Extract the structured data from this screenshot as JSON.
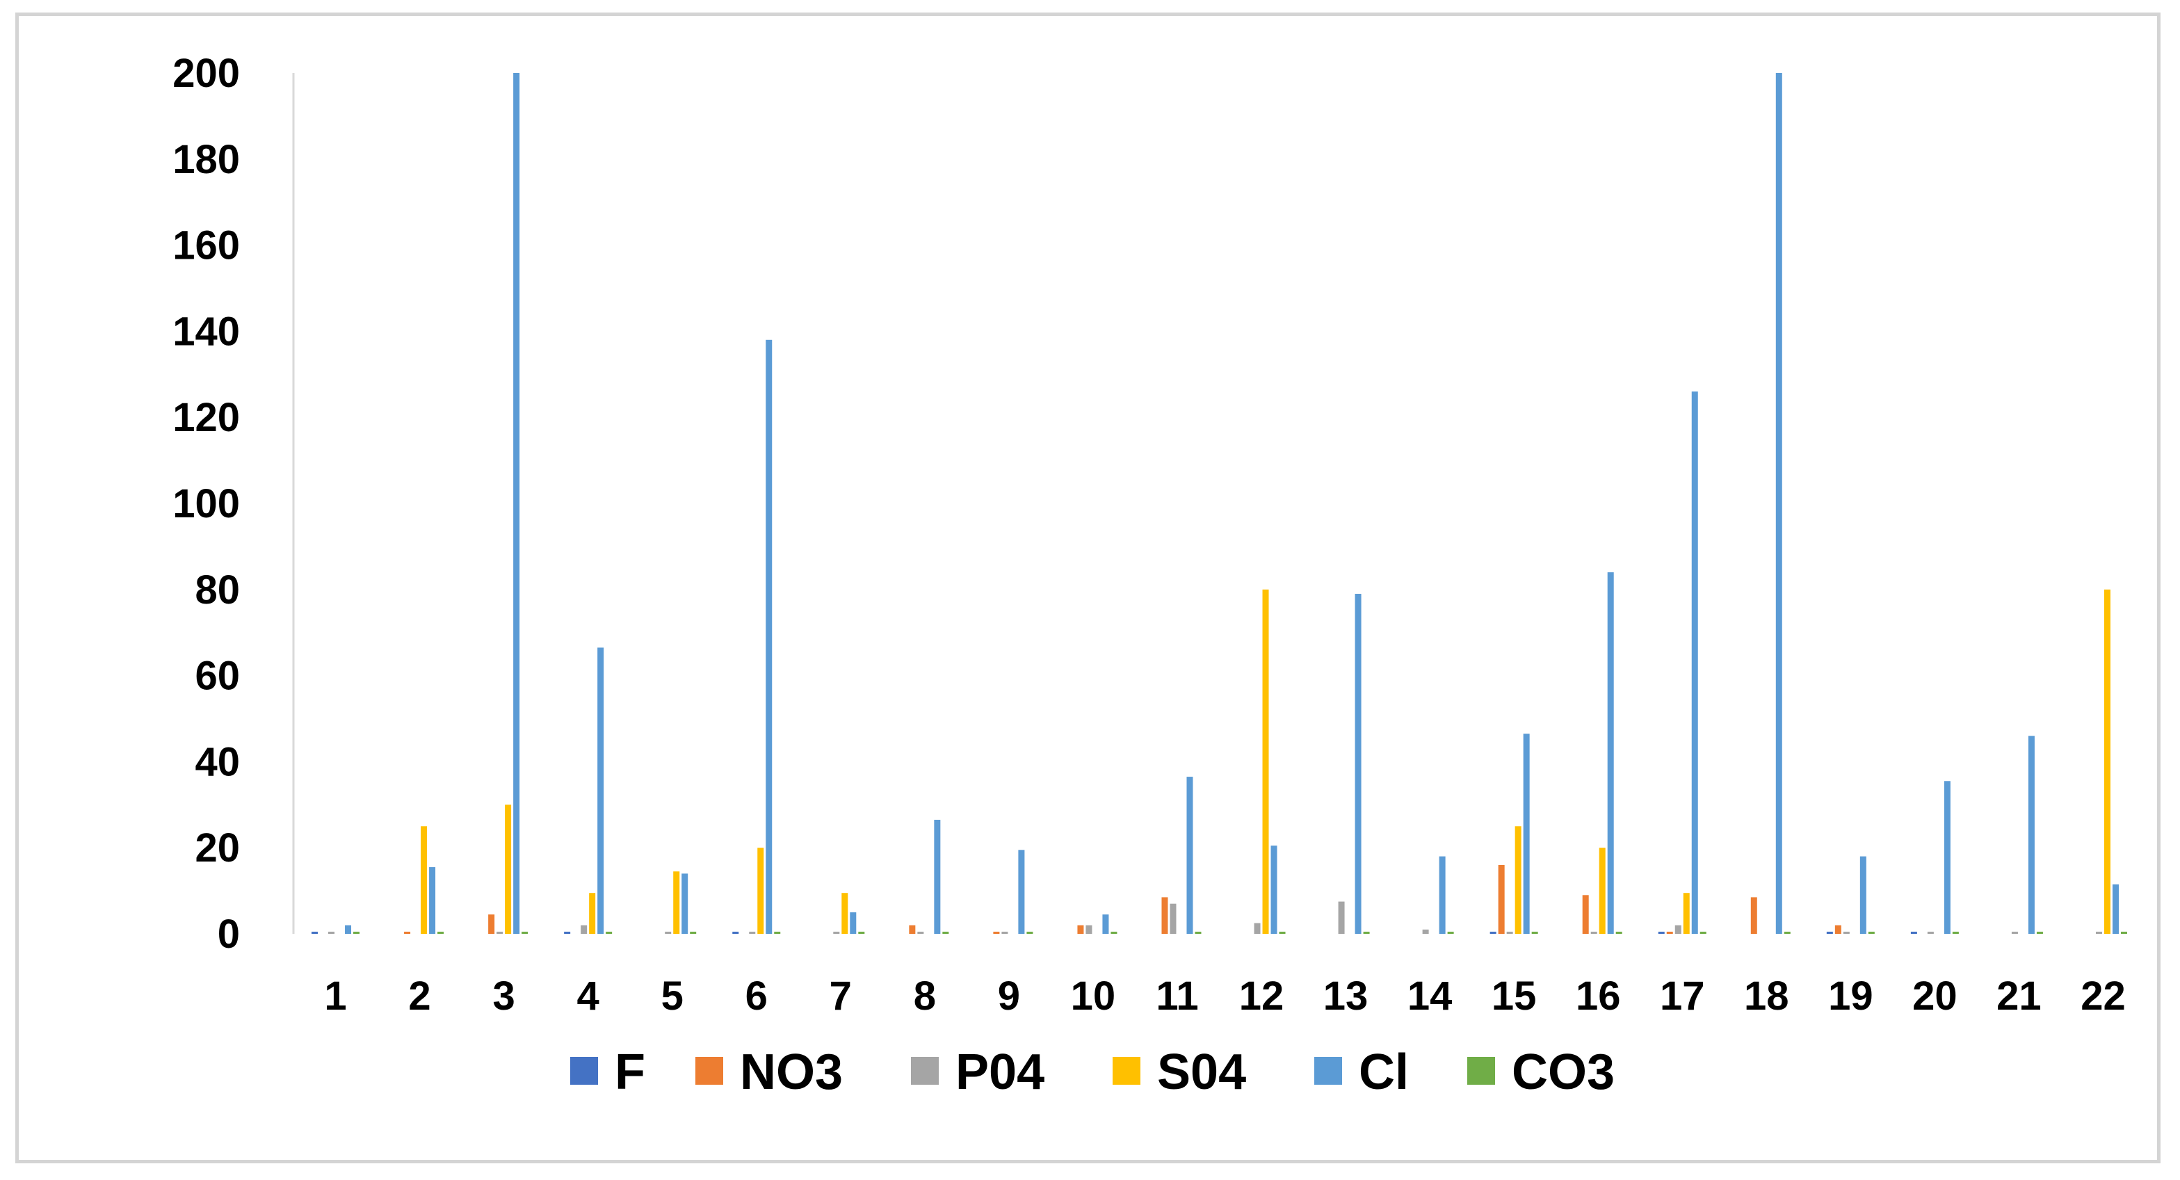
{
  "chart_data": {
    "type": "bar",
    "title": "",
    "xlabel": "",
    "ylabel": "",
    "ylim": [
      0,
      200
    ],
    "yticks": [
      "0",
      "20",
      "40",
      "60",
      "80",
      "100",
      "120",
      "140",
      "160",
      "180",
      "200"
    ],
    "categories": [
      "1",
      "2",
      "3",
      "4",
      "5",
      "6",
      "7",
      "8",
      "9",
      "10",
      "11",
      "12",
      "13",
      "14",
      "15",
      "16",
      "17",
      "18",
      "19",
      "20",
      "21",
      "22"
    ],
    "grid": false,
    "legend_position": "bottom",
    "series": [
      {
        "name": "F",
        "color": "#4472c4",
        "values": [
          0.5,
          0,
          0,
          0.5,
          0,
          0.5,
          0,
          0,
          0,
          0,
          0,
          0,
          0,
          0,
          0.5,
          0,
          0.5,
          0,
          0.5,
          0.5,
          0,
          0
        ]
      },
      {
        "name": "NO3",
        "color": "#ed7d31",
        "values": [
          0,
          0.5,
          4.5,
          0,
          0,
          0,
          0,
          2,
          0.5,
          2,
          8.5,
          0,
          0,
          0,
          16,
          9,
          0.5,
          8.5,
          2,
          0,
          0,
          0
        ]
      },
      {
        "name": "P04",
        "color": "#a5a5a5",
        "values": [
          0.5,
          0,
          0.5,
          2,
          0.5,
          0.5,
          0.5,
          0.5,
          0.5,
          2,
          7,
          2.5,
          7.5,
          1,
          0.5,
          0.5,
          2,
          0,
          0.5,
          0.5,
          0.5,
          0.5
        ]
      },
      {
        "name": "S04",
        "color": "#ffc000",
        "values": [
          0,
          25,
          30,
          9.5,
          14.5,
          20,
          9.5,
          0,
          0,
          0,
          0,
          80,
          0,
          0,
          25,
          20,
          9.5,
          0,
          0,
          0,
          0,
          80
        ]
      },
      {
        "name": "Cl",
        "color": "#5b9bd5",
        "values": [
          2,
          15.5,
          200,
          66.5,
          14,
          138,
          5,
          26.5,
          19.5,
          4.5,
          36.5,
          20.5,
          79,
          18,
          46.5,
          84,
          126,
          200,
          18,
          35.5,
          46,
          11.5
        ]
      },
      {
        "name": "CO3",
        "color": "#70ad47",
        "values": [
          0.5,
          0.5,
          0.5,
          0.5,
          0.5,
          0.5,
          0.5,
          0.5,
          0.5,
          0.5,
          0.5,
          0.5,
          0.5,
          0.5,
          0.5,
          0.5,
          0.5,
          0.5,
          0.5,
          0.5,
          0.5,
          0.5
        ]
      }
    ]
  }
}
